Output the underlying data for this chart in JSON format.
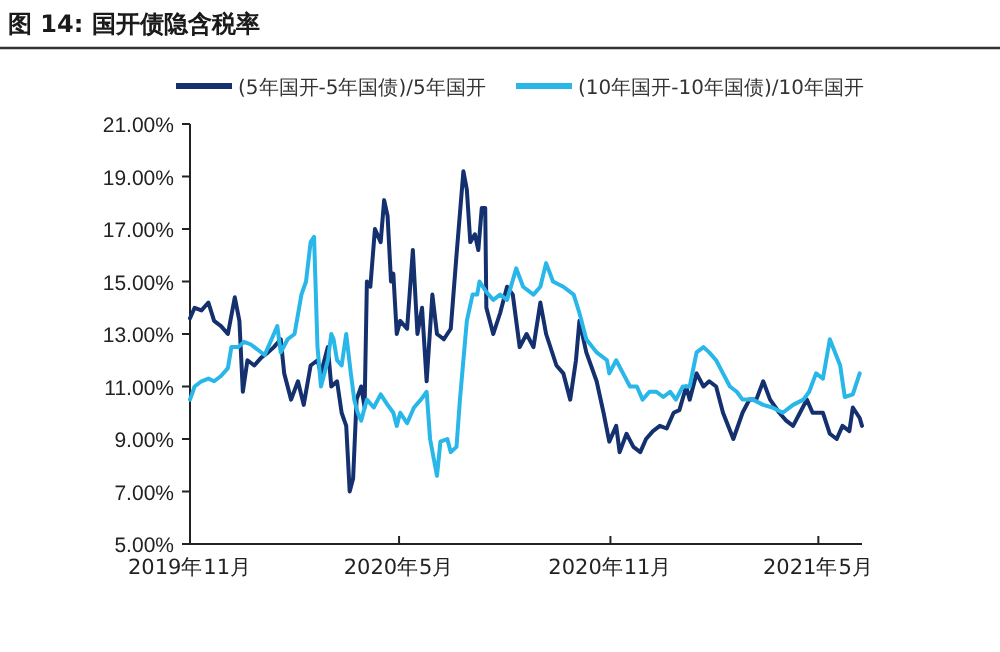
{
  "chart_data": {
    "type": "line",
    "title": "图 14: 国开债隐含税率",
    "legend": "top",
    "grid": false,
    "marker": "none",
    "line_style": "solid",
    "xlim": [
      "2019-11-01",
      "2021-06-08"
    ],
    "xticks": [
      {
        "value": "2019-11-01",
        "label": "2019年11月"
      },
      {
        "value": "2020-05-01",
        "label": "2020年5月"
      },
      {
        "value": "2020-11-01",
        "label": "2020年11月"
      },
      {
        "value": "2021-05-01",
        "label": "2021年5月"
      }
    ],
    "ylim": [
      5,
      21
    ],
    "yticks": [
      {
        "value": 5,
        "label": "5.00%"
      },
      {
        "value": 7,
        "label": "7.00%"
      },
      {
        "value": 9,
        "label": "9.00%"
      },
      {
        "value": 11,
        "label": "11.00%"
      },
      {
        "value": 13,
        "label": "13.00%"
      },
      {
        "value": 15,
        "label": "15.00%"
      },
      {
        "value": 17,
        "label": "17.00%"
      },
      {
        "value": 19,
        "label": "19.00%"
      },
      {
        "value": 21,
        "label": "21.00%"
      }
    ],
    "series": [
      {
        "name": "(5年国开-5年国债)/5年国开",
        "color": "#14306e",
        "x": [
          "2019-11-01",
          "2019-11-05",
          "2019-11-11",
          "2019-11-17",
          "2019-11-22",
          "2019-11-28",
          "2019-12-04",
          "2019-12-10",
          "2019-12-14",
          "2019-12-17",
          "2019-12-21",
          "2019-12-27",
          "2020-01-02",
          "2020-01-08",
          "2020-01-13",
          "2020-01-19",
          "2020-01-22",
          "2020-01-28",
          "2020-02-03",
          "2020-02-08",
          "2020-02-14",
          "2020-02-20",
          "2020-02-23",
          "2020-02-29",
          "2020-03-03",
          "2020-03-08",
          "2020-03-12",
          "2020-03-16",
          "2020-03-19",
          "2020-03-22",
          "2020-03-25",
          "2020-03-29",
          "2020-04-01",
          "2020-04-03",
          "2020-04-06",
          "2020-04-10",
          "2020-04-15",
          "2020-04-18",
          "2020-04-21",
          "2020-04-24",
          "2020-04-26",
          "2020-04-29",
          "2020-05-02",
          "2020-05-08",
          "2020-05-13",
          "2020-05-17",
          "2020-05-21",
          "2020-05-25",
          "2020-05-30",
          "2020-06-03",
          "2020-06-09",
          "2020-06-15",
          "2020-06-20",
          "2020-06-26",
          "2020-06-29",
          "2020-07-02",
          "2020-07-06",
          "2020-07-09",
          "2020-07-12",
          "2020-07-15",
          "2020-07-16",
          "2020-07-22",
          "2020-07-28",
          "2020-08-03",
          "2020-08-08",
          "2020-08-14",
          "2020-08-20",
          "2020-08-26",
          "2020-09-01",
          "2020-09-06",
          "2020-09-15",
          "2020-09-21",
          "2020-09-27",
          "2020-10-02",
          "2020-10-05",
          "2020-10-11",
          "2020-10-20",
          "2020-10-26",
          "2020-10-31",
          "2020-11-06",
          "2020-11-09",
          "2020-11-15",
          "2020-11-21",
          "2020-11-27",
          "2020-12-02",
          "2020-12-08",
          "2020-12-14",
          "2020-12-20",
          "2020-12-26",
          "2020-12-31",
          "2021-01-06",
          "2021-01-09",
          "2021-01-15",
          "2021-01-21",
          "2021-01-26",
          "2021-02-01",
          "2021-02-07",
          "2021-02-16",
          "2021-02-24",
          "2021-03-02",
          "2021-03-08",
          "2021-03-14",
          "2021-03-20",
          "2021-03-28",
          "2021-04-03",
          "2021-04-09",
          "2021-04-15",
          "2021-04-21",
          "2021-04-26",
          "2021-05-05",
          "2021-05-11",
          "2021-05-17",
          "2021-05-22",
          "2021-05-28",
          "2021-05-31",
          "2021-06-06",
          "2021-06-08"
        ],
        "values": [
          13.6,
          14.0,
          13.9,
          14.2,
          13.5,
          13.3,
          13.0,
          14.4,
          13.5,
          10.8,
          12.0,
          11.8,
          12.1,
          12.3,
          12.5,
          12.8,
          11.5,
          10.5,
          11.2,
          10.3,
          11.8,
          12.0,
          11.5,
          12.5,
          11.0,
          11.2,
          10.0,
          9.5,
          7.0,
          7.5,
          10.5,
          11.0,
          10.2,
          15.0,
          14.8,
          17.0,
          16.5,
          18.1,
          17.5,
          15.0,
          15.3,
          13.0,
          13.5,
          13.2,
          16.2,
          13.0,
          14.0,
          11.2,
          14.5,
          13.0,
          12.8,
          13.2,
          16.0,
          19.2,
          18.5,
          16.5,
          16.8,
          16.2,
          17.8,
          17.8,
          14.0,
          13.0,
          13.8,
          14.8,
          14.5,
          12.5,
          13.0,
          12.5,
          14.2,
          13.0,
          11.8,
          11.5,
          10.5,
          12.0,
          13.5,
          12.3,
          11.2,
          10.0,
          8.9,
          9.5,
          8.5,
          9.2,
          8.7,
          8.5,
          9.0,
          9.3,
          9.5,
          9.4,
          10.0,
          10.1,
          11.0,
          10.5,
          11.5,
          11.0,
          11.2,
          11.0,
          10.0,
          9.0,
          10.0,
          10.5,
          10.5,
          11.2,
          10.5,
          10.0,
          9.7,
          9.5,
          10.0,
          10.5,
          10.0,
          10.0,
          9.2,
          9.0,
          9.5,
          9.3,
          10.2,
          9.8,
          9.5
        ]
      },
      {
        "name": "(10年国开-10年国债)/10年国开",
        "color": "#29b6e8",
        "x": [
          "2019-11-01",
          "2019-11-05",
          "2019-11-11",
          "2019-11-17",
          "2019-11-22",
          "2019-11-28",
          "2019-12-04",
          "2019-12-07",
          "2019-12-13",
          "2019-12-18",
          "2019-12-24",
          "2019-12-30",
          "2020-01-05",
          "2020-01-11",
          "2020-01-16",
          "2020-01-19",
          "2020-01-25",
          "2020-01-31",
          "2020-02-06",
          "2020-02-10",
          "2020-02-14",
          "2020-02-17",
          "2020-02-20",
          "2020-02-23",
          "2020-02-26",
          "2020-02-29",
          "2020-03-03",
          "2020-03-05",
          "2020-03-08",
          "2020-03-12",
          "2020-03-16",
          "2020-03-20",
          "2020-03-23",
          "2020-03-26",
          "2020-03-29",
          "2020-04-03",
          "2020-04-09",
          "2020-04-15",
          "2020-04-21",
          "2020-04-26",
          "2020-04-29",
          "2020-05-02",
          "2020-05-08",
          "2020-05-14",
          "2020-05-20",
          "2020-05-25",
          "2020-05-28",
          "2020-06-03",
          "2020-06-06",
          "2020-06-12",
          "2020-06-15",
          "2020-06-20",
          "2020-06-23",
          "2020-06-29",
          "2020-07-04",
          "2020-07-08",
          "2020-07-10",
          "2020-07-16",
          "2020-07-22",
          "2020-07-28",
          "2020-08-03",
          "2020-08-11",
          "2020-08-17",
          "2020-08-26",
          "2020-09-01",
          "2020-09-06",
          "2020-09-12",
          "2020-09-21",
          "2020-09-30",
          "2020-10-05",
          "2020-10-11",
          "2020-10-20",
          "2020-10-29",
          "2020-10-31",
          "2020-11-06",
          "2020-11-12",
          "2020-11-18",
          "2020-11-24",
          "2020-11-29",
          "2020-12-05",
          "2020-12-11",
          "2020-12-17",
          "2020-12-23",
          "2020-12-28",
          "2021-01-03",
          "2021-01-09",
          "2021-01-15",
          "2021-01-21",
          "2021-01-26",
          "2021-02-01",
          "2021-02-07",
          "2021-02-13",
          "2021-02-19",
          "2021-02-24",
          "2021-03-05",
          "2021-03-14",
          "2021-03-22",
          "2021-03-31",
          "2021-04-09",
          "2021-04-18",
          "2021-04-23",
          "2021-04-29",
          "2021-05-05",
          "2021-05-11",
          "2021-05-20",
          "2021-05-24",
          "2021-05-31",
          "2021-06-06"
        ],
        "values": [
          10.5,
          11.0,
          11.2,
          11.3,
          11.2,
          11.4,
          11.7,
          12.5,
          12.5,
          12.7,
          12.6,
          12.4,
          12.2,
          12.8,
          13.3,
          12.3,
          12.8,
          13.0,
          14.5,
          15.0,
          16.5,
          16.7,
          12.5,
          11.0,
          11.5,
          12.0,
          13.0,
          12.8,
          12.0,
          11.8,
          13.0,
          11.5,
          10.5,
          10.0,
          9.7,
          10.5,
          10.2,
          10.7,
          10.3,
          10.0,
          9.5,
          10.0,
          9.6,
          10.2,
          10.5,
          10.8,
          9.0,
          7.6,
          8.9,
          9.0,
          8.5,
          8.7,
          10.5,
          13.5,
          14.5,
          14.5,
          15.0,
          14.6,
          14.3,
          14.5,
          14.3,
          15.5,
          14.8,
          14.5,
          14.8,
          15.7,
          15.0,
          14.8,
          14.5,
          13.8,
          12.8,
          12.3,
          12.0,
          11.5,
          12.0,
          11.5,
          11.0,
          11.0,
          10.5,
          10.8,
          10.8,
          10.6,
          10.8,
          10.5,
          11.0,
          11.0,
          12.3,
          12.5,
          12.3,
          12.0,
          11.5,
          11.0,
          10.8,
          10.5,
          10.5,
          10.3,
          10.2,
          10.0,
          10.3,
          10.5,
          10.8,
          11.5,
          11.3,
          12.8,
          11.8,
          10.6,
          10.7,
          11.5
        ]
      }
    ]
  }
}
